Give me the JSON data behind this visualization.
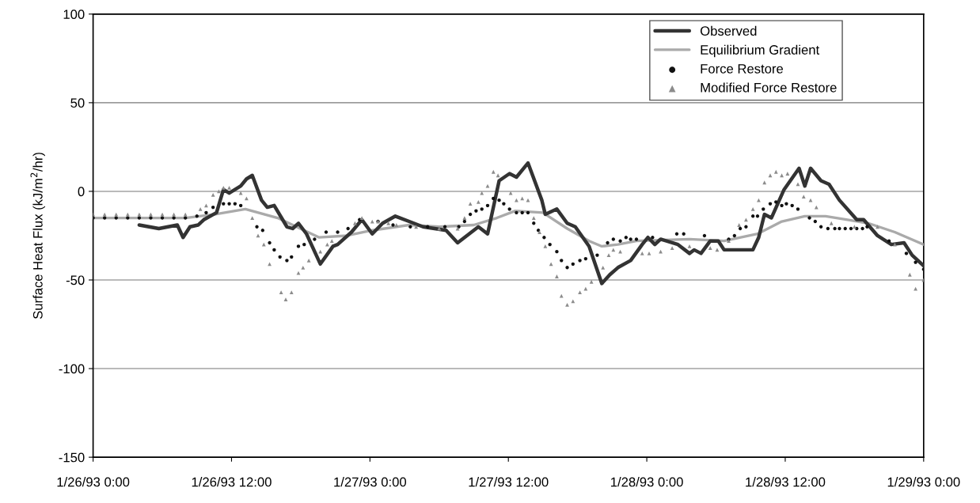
{
  "chart_data": {
    "type": "line",
    "ylabel": "Surface Heat Flux (kJ/m$^{2}$/hr)",
    "xlim": [
      "1993-01-26T00:00",
      "1993-01-29T00:00"
    ],
    "xticks": [
      {
        "value": "1993-01-26T00:00",
        "label": "1/26/93 0:00"
      },
      {
        "value": "1993-01-26T12:00",
        "label": "1/26/93 12:00"
      },
      {
        "value": "1993-01-27T00:00",
        "label": "1/27/93 0:00"
      },
      {
        "value": "1993-01-27T12:00",
        "label": "1/27/93 12:00"
      },
      {
        "value": "1993-01-28T00:00",
        "label": "1/28/93 0:00"
      },
      {
        "value": "1993-01-28T12:00",
        "label": "1/28/93 12:00"
      },
      {
        "value": "1993-01-29T00:00",
        "label": "1/29/93 0:00"
      }
    ],
    "ylim": [
      -150,
      100
    ],
    "yticks": [
      -150,
      -100,
      -50,
      0,
      50,
      100
    ],
    "grid": "y",
    "legend": "top right",
    "series": [
      {
        "name": "Observed",
        "color": "#333333",
        "line_style": "solid",
        "marker": "none",
        "x": [
          "1993-01-26T04:00",
          "1993-01-26T05:42",
          "1993-01-26T07:18",
          "1993-01-26T07:48",
          "1993-01-26T08:24",
          "1993-01-26T09:06",
          "1993-01-26T09:36",
          "1993-01-26T10:42",
          "1993-01-26T11:18",
          "1993-01-26T11:48",
          "1993-01-26T12:48",
          "1993-01-26T13:18",
          "1993-01-26T13:48",
          "1993-01-26T14:36",
          "1993-01-26T15:06",
          "1993-01-26T15:42",
          "1993-01-26T16:48",
          "1993-01-26T17:18",
          "1993-01-26T17:48",
          "1993-01-26T18:30",
          "1993-01-26T19:42",
          "1993-01-26T20:48",
          "1993-01-26T21:12",
          "1993-01-26T22:24",
          "1993-01-26T23:18",
          "1993-01-27T00:12",
          "1993-01-27T01:06",
          "1993-01-27T02:12",
          "1993-01-27T03:24",
          "1993-01-27T04:36",
          "1993-01-27T06:36",
          "1993-01-27T07:36",
          "1993-01-27T09:24",
          "1993-01-27T10:12",
          "1993-01-27T11:12",
          "1993-01-27T12:06",
          "1993-01-27T12:42",
          "1993-01-27T13:42",
          "1993-01-27T14:54",
          "1993-01-27T15:12",
          "1993-01-27T16:12",
          "1993-01-27T17:06",
          "1993-01-27T17:48",
          "1993-01-27T19:00",
          "1993-01-27T20:06",
          "1993-01-27T20:48",
          "1993-01-27T21:30",
          "1993-01-27T22:36",
          "1993-01-27T23:36",
          "1993-01-28T00:06",
          "1993-01-28T00:42",
          "1993-01-28T01:12",
          "1993-01-28T02:42",
          "1993-01-28T03:42",
          "1993-01-28T04:06",
          "1993-01-28T04:42",
          "1993-01-28T05:30",
          "1993-01-28T06:12",
          "1993-01-28T06:42",
          "1993-01-28T09:12",
          "1993-01-28T09:42",
          "1993-01-28T10:12",
          "1993-01-28T10:48",
          "1993-01-28T11:54",
          "1993-01-28T13:12",
          "1993-01-28T13:42",
          "1993-01-28T14:12",
          "1993-01-28T15:06",
          "1993-01-28T15:48",
          "1993-01-28T16:42",
          "1993-01-28T18:12",
          "1993-01-28T18:48",
          "1993-01-28T20:00",
          "1993-01-28T21:12",
          "1993-01-28T22:18",
          "1993-01-28T23:00",
          "1993-01-29T00:00"
        ],
        "values": [
          -19,
          -21,
          -19,
          -26,
          -20,
          -19,
          -16,
          -12,
          1,
          -1,
          3,
          7,
          9,
          -5,
          -9,
          -8,
          -20,
          -21,
          -18,
          -24,
          -41,
          -31,
          -30,
          -23,
          -16,
          -24,
          -18,
          -14,
          -17,
          -20,
          -22,
          -29,
          -20,
          -24,
          6,
          10,
          8,
          16,
          -5,
          -13,
          -10,
          -18,
          -20,
          -31,
          -52,
          -47,
          -43,
          -39,
          -30,
          -26,
          -30,
          -27,
          -30,
          -35,
          -33,
          -35,
          -28,
          -28,
          -33,
          -33,
          -26,
          -13,
          -15,
          1,
          13,
          3,
          13,
          6,
          4,
          -5,
          -16,
          -16,
          -25,
          -30,
          -29,
          -36,
          -42
        ]
      },
      {
        "name": "Equilibrium Gradient",
        "color": "#aaaaaa",
        "line_style": "solid",
        "marker": "none",
        "x": [
          "1993-01-26T00:00",
          "1993-01-26T04:00",
          "1993-01-26T08:00",
          "1993-01-26T10:30",
          "1993-01-26T13:12",
          "1993-01-26T16:00",
          "1993-01-26T19:36",
          "1993-01-26T22:00",
          "1993-01-27T00:12",
          "1993-01-27T03:24",
          "1993-01-27T06:00",
          "1993-01-27T09:00",
          "1993-01-27T11:00",
          "1993-01-27T12:36",
          "1993-01-27T15:00",
          "1993-01-27T17:06",
          "1993-01-27T19:00",
          "1993-01-27T20:06",
          "1993-01-27T21:30",
          "1993-01-27T23:06",
          "1993-01-28T03:42",
          "1993-01-28T06:42",
          "1993-01-28T09:36",
          "1993-01-28T11:42",
          "1993-01-28T13:42",
          "1993-01-28T15:30",
          "1993-01-28T17:24",
          "1993-01-28T19:12",
          "1993-01-28T21:30",
          "1993-01-29T00:00"
        ],
        "values": [
          -15,
          -15,
          -15,
          -13,
          -10,
          -15,
          -26,
          -25,
          -22,
          -19,
          -20,
          -19,
          -15,
          -11,
          -12,
          -21,
          -28,
          -31,
          -30,
          -28,
          -27,
          -28,
          -24,
          -17,
          -14,
          -14,
          -16,
          -18,
          -23,
          -30
        ]
      },
      {
        "name": "Force Restore",
        "type": "scatter",
        "color": "#111111",
        "marker": "circle",
        "x": [
          "1993-01-26T00:00",
          "1993-01-26T01:00",
          "1993-01-26T02:00",
          "1993-01-26T03:00",
          "1993-01-26T04:00",
          "1993-01-26T05:00",
          "1993-01-26T06:00",
          "1993-01-26T07:00",
          "1993-01-26T08:00",
          "1993-01-26T09:00",
          "1993-01-26T09:48",
          "1993-01-26T10:24",
          "1993-01-26T11:18",
          "1993-01-26T11:48",
          "1993-01-26T12:18",
          "1993-01-26T12:48",
          "1993-01-26T14:12",
          "1993-01-26T14:42",
          "1993-01-26T15:18",
          "1993-01-26T15:42",
          "1993-01-26T16:12",
          "1993-01-26T16:48",
          "1993-01-26T17:12",
          "1993-01-26T17:48",
          "1993-01-26T18:18",
          "1993-01-26T19:12",
          "1993-01-26T20:12",
          "1993-01-26T21:12",
          "1993-01-26T22:06",
          "1993-01-26T23:06",
          "1993-01-27T00:42",
          "1993-01-27T02:00",
          "1993-01-27T03:30",
          "1993-01-27T05:00",
          "1993-01-27T06:30",
          "1993-01-27T07:42",
          "1993-01-27T08:12",
          "1993-01-27T08:42",
          "1993-01-27T09:12",
          "1993-01-27T09:42",
          "1993-01-27T10:12",
          "1993-01-27T10:42",
          "1993-01-27T11:12",
          "1993-01-27T11:36",
          "1993-01-27T12:06",
          "1993-01-27T12:42",
          "1993-01-27T13:12",
          "1993-01-27T13:42",
          "1993-01-27T14:12",
          "1993-01-27T14:36",
          "1993-01-27T15:06",
          "1993-01-27T15:36",
          "1993-01-27T16:12",
          "1993-01-27T16:36",
          "1993-01-27T17:06",
          "1993-01-27T17:36",
          "1993-01-27T18:12",
          "1993-01-27T18:42",
          "1993-01-27T19:42",
          "1993-01-27T20:36",
          "1993-01-27T21:06",
          "1993-01-27T21:42",
          "1993-01-27T22:12",
          "1993-01-27T22:36",
          "1993-01-27T23:06",
          "1993-01-28T00:30",
          "1993-01-28T02:36",
          "1993-01-28T03:12",
          "1993-01-28T05:00",
          "1993-01-28T07:06",
          "1993-01-28T07:36",
          "1993-01-28T08:06",
          "1993-01-28T08:36",
          "1993-01-28T09:12",
          "1993-01-28T09:36",
          "1993-01-28T10:06",
          "1993-01-28T10:42",
          "1993-01-28T11:12",
          "1993-01-28T11:42",
          "1993-01-28T12:06",
          "1993-01-28T12:36",
          "1993-01-28T13:06",
          "1993-01-28T14:06",
          "1993-01-28T14:36",
          "1993-01-28T15:06",
          "1993-01-28T15:42",
          "1993-01-28T16:18",
          "1993-01-28T16:42",
          "1993-01-28T17:12",
          "1993-01-28T17:42",
          "1993-01-28T18:12",
          "1993-01-28T18:42",
          "1993-01-28T19:06",
          "1993-01-28T21:00",
          "1993-01-28T22:30",
          "1993-01-28T23:18",
          "1993-01-29T00:00"
        ],
        "values": [
          -15,
          -15,
          -15,
          -15,
          -15,
          -15,
          -15,
          -15,
          -15,
          -14,
          -12,
          -9,
          -7,
          -7,
          -7,
          -8,
          -20,
          -22,
          -29,
          -33,
          -37,
          -39,
          -37,
          -31,
          -30,
          -27,
          -23,
          -23,
          -21,
          -16,
          -17,
          -19,
          -20,
          -20,
          -20,
          -20,
          -17,
          -13,
          -11,
          -10,
          -8,
          -4,
          -5,
          -7,
          -10,
          -12,
          -12,
          -12,
          -18,
          -22,
          -26,
          -30,
          -34,
          -39,
          -43,
          -41,
          -39,
          -38,
          -36,
          -29,
          -27,
          -28,
          -26,
          -27,
          -27,
          -26,
          -24,
          -24,
          -25,
          -27,
          -25,
          -21,
          -20,
          -14,
          -14,
          -10,
          -7,
          -6,
          -8,
          -7,
          -8,
          -10,
          -15,
          -17,
          -20,
          -21,
          -21,
          -21,
          -21,
          -21,
          -21,
          -21,
          -20,
          -28,
          -35,
          -40,
          -44
        ]
      },
      {
        "name": "Modified Force Restore",
        "type": "scatter",
        "color": "#8c8c8c",
        "marker": "triangle",
        "x": [
          "1993-01-26T00:00",
          "1993-01-26T01:00",
          "1993-01-26T02:00",
          "1993-01-26T03:00",
          "1993-01-26T04:00",
          "1993-01-26T05:00",
          "1993-01-26T06:00",
          "1993-01-26T07:00",
          "1993-01-26T08:00",
          "1993-01-26T09:18",
          "1993-01-26T09:48",
          "1993-01-26T10:24",
          "1993-01-26T10:54",
          "1993-01-26T11:18",
          "1993-01-26T11:48",
          "1993-01-26T12:48",
          "1993-01-26T13:18",
          "1993-01-26T13:48",
          "1993-01-26T14:18",
          "1993-01-26T14:48",
          "1993-01-26T15:18",
          "1993-01-26T16:18",
          "1993-01-26T16:42",
          "1993-01-26T17:12",
          "1993-01-26T17:48",
          "1993-01-26T18:12",
          "1993-01-26T18:42",
          "1993-01-26T19:42",
          "1993-01-26T20:18",
          "1993-01-26T20:42",
          "1993-01-26T22:42",
          "1993-01-26T23:18",
          "1993-01-27T00:12",
          "1993-01-27T00:42",
          "1993-01-27T01:36",
          "1993-01-27T02:18",
          "1993-01-27T04:00",
          "1993-01-27T06:00",
          "1993-01-27T07:36",
          "1993-01-27T08:12",
          "1993-01-27T08:42",
          "1993-01-27T09:24",
          "1993-01-27T09:42",
          "1993-01-27T10:12",
          "1993-01-27T10:42",
          "1993-01-27T11:06",
          "1993-01-27T12:12",
          "1993-01-27T12:42",
          "1993-01-27T13:12",
          "1993-01-27T13:42",
          "1993-01-27T14:12",
          "1993-01-27T14:42",
          "1993-01-27T15:12",
          "1993-01-27T15:42",
          "1993-01-27T16:12",
          "1993-01-27T16:36",
          "1993-01-27T17:06",
          "1993-01-27T17:36",
          "1993-01-27T18:12",
          "1993-01-27T18:42",
          "1993-01-27T19:12",
          "1993-01-27T20:12",
          "1993-01-27T20:42",
          "1993-01-27T21:06",
          "1993-01-27T21:42",
          "1993-01-27T23:36",
          "1993-01-28T00:12",
          "1993-01-28T01:12",
          "1993-01-28T02:12",
          "1993-01-28T03:42",
          "1993-01-28T05:30",
          "1993-01-28T06:06",
          "1993-01-28T07:06",
          "1993-01-28T08:00",
          "1993-01-28T08:36",
          "1993-01-28T09:12",
          "1993-01-28T09:42",
          "1993-01-28T10:12",
          "1993-01-28T10:42",
          "1993-01-28T11:12",
          "1993-01-28T11:42",
          "1993-01-28T12:12",
          "1993-01-28T13:06",
          "1993-01-28T13:36",
          "1993-01-28T14:12",
          "1993-01-28T14:42",
          "1993-01-28T16:00",
          "1993-01-28T18:00",
          "1993-01-28T20:00",
          "1993-01-28T21:30",
          "1993-01-28T22:48",
          "1993-01-28T23:18",
          "1993-01-29T00:00"
        ],
        "values": [
          -13,
          -13,
          -13,
          -13,
          -13,
          -13,
          -13,
          -13,
          -13,
          -10,
          -8,
          -2,
          0,
          2,
          2,
          -1,
          -4,
          -15,
          -25,
          -30,
          -41,
          -57,
          -61,
          -57,
          -46,
          -43,
          -39,
          -34,
          -30,
          -28,
          -18,
          -15,
          -17,
          -17,
          -18,
          -19,
          -20,
          -21,
          -21,
          -15,
          -7,
          -6,
          -1,
          3,
          11,
          9,
          -1,
          -5,
          -4,
          -5,
          -15,
          -23,
          -31,
          -41,
          -48,
          -59,
          -64,
          -62,
          -57,
          -55,
          -51,
          -43,
          -36,
          -33,
          -34,
          -35,
          -35,
          -34,
          -32,
          -31,
          -32,
          -33,
          -28,
          -19,
          -16,
          -10,
          -5,
          5,
          9,
          11,
          9,
          10,
          4,
          -3,
          -5,
          -9,
          -18,
          -20,
          -20,
          -30,
          -47,
          -55,
          -50
        ]
      }
    ]
  }
}
